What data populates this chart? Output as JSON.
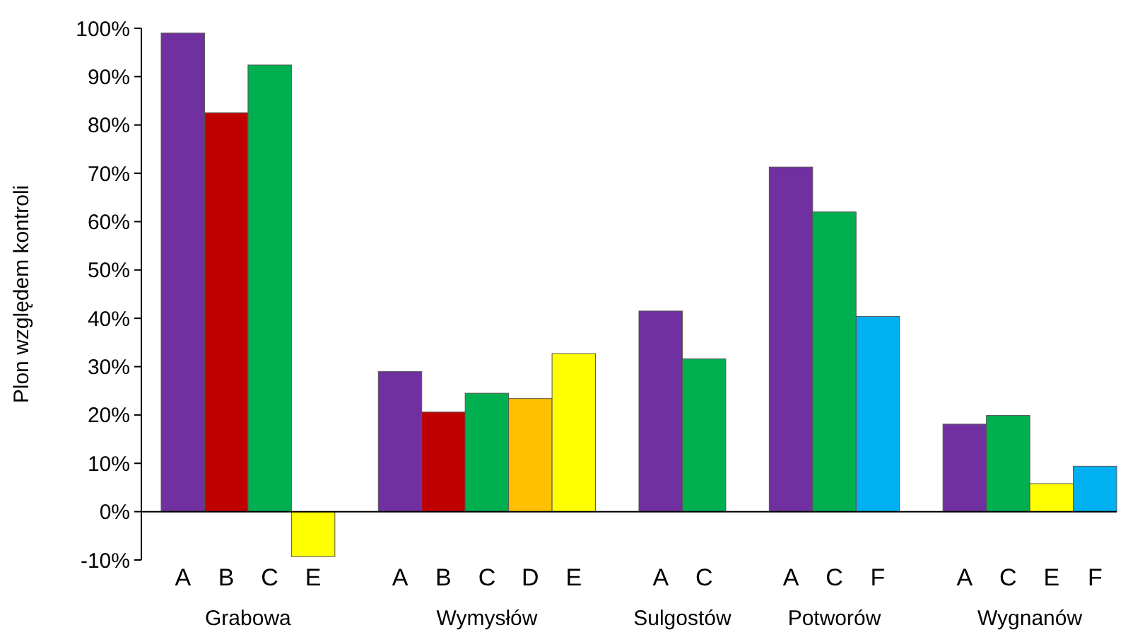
{
  "chart_data": {
    "type": "bar",
    "ylabel": "Plon względem kontroli",
    "categories": [
      "A",
      "B",
      "C",
      "E",
      null,
      "A",
      "B",
      "C",
      "D",
      "E",
      null,
      "A",
      "C",
      null,
      "A",
      "C",
      "F",
      null,
      "A",
      "C",
      "E",
      "F"
    ],
    "values": [
      99,
      82.5,
      92.4,
      -9.3,
      null,
      29,
      20.6,
      24.5,
      23.4,
      32.7,
      null,
      41.5,
      31.6,
      null,
      71.3,
      62,
      40.4,
      null,
      18.1,
      19.9,
      5.8,
      9.4
    ],
    "colors": [
      "#7030a0",
      "#c00000",
      "#00b050",
      "#ffff00",
      null,
      "#7030a0",
      "#c00000",
      "#00b050",
      "#ffc000",
      "#ffff00",
      null,
      "#7030a0",
      "#00b050",
      null,
      "#7030a0",
      "#00b050",
      "#00b0f0",
      null,
      "#7030a0",
      "#00b050",
      "#ffff00",
      "#00b0f0"
    ],
    "annotations": [
      "Grabowa",
      "Wymysłów",
      "Sulgostów",
      "Potworów",
      "Wygnanów"
    ],
    "ylim": [
      -10,
      100
    ],
    "yticks": [
      {
        "value": -10,
        "label": "-10%"
      },
      {
        "value": 0,
        "label": "0%"
      },
      {
        "value": 10,
        "label": "10%"
      },
      {
        "value": 20,
        "label": "20%"
      },
      {
        "value": 30,
        "label": "30%"
      },
      {
        "value": 40,
        "label": "40%"
      },
      {
        "value": 50,
        "label": "50%"
      },
      {
        "value": 60,
        "label": "60%"
      },
      {
        "value": 70,
        "label": "70%"
      },
      {
        "value": 80,
        "label": "80%"
      },
      {
        "value": 90,
        "label": "90%"
      },
      {
        "value": 100,
        "label": "100%"
      }
    ],
    "grid": false
  }
}
